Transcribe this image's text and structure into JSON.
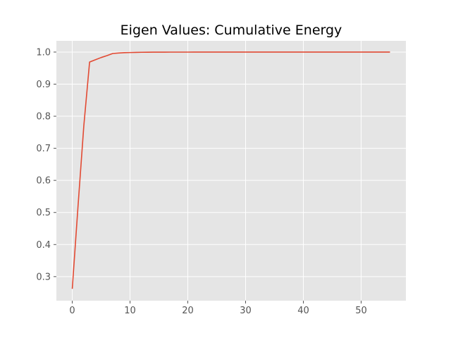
{
  "chart_data": {
    "type": "line",
    "title": "Eigen Values: Cumulative Energy",
    "xlabel": "",
    "ylabel": "",
    "xlim": [
      -2.75,
      57.75
    ],
    "ylim": [
      0.225,
      1.035
    ],
    "grid": true,
    "x_ticks": [
      0,
      10,
      20,
      30,
      40,
      50
    ],
    "y_ticks": [
      0.3,
      0.4,
      0.5,
      0.6,
      0.7,
      0.8,
      0.9,
      1.0
    ],
    "x_tick_labels": [
      "0",
      "10",
      "20",
      "30",
      "40",
      "50"
    ],
    "y_tick_labels": [
      "0.3",
      "0.4",
      "0.5",
      "0.6",
      "0.7",
      "0.8",
      "0.9",
      "1.0"
    ],
    "series": [
      {
        "color": "#E24A33",
        "x": [
          0,
          1,
          2,
          3,
          4,
          5,
          6,
          7,
          8,
          9,
          10,
          11,
          12,
          13,
          14,
          15,
          16,
          17,
          18,
          19,
          20,
          21,
          22,
          23,
          24,
          25,
          26,
          27,
          28,
          29,
          30,
          31,
          32,
          33,
          34,
          35,
          36,
          37,
          38,
          39,
          40,
          41,
          42,
          43,
          44,
          45,
          46,
          47,
          48,
          49,
          50,
          51,
          52,
          53,
          54,
          55
        ],
        "y": [
          0.262,
          0.52,
          0.77,
          0.969,
          0.976,
          0.983,
          0.989,
          0.9955,
          0.997,
          0.998,
          0.9985,
          0.999,
          0.9993,
          0.9995,
          0.9997,
          0.9998,
          0.9998,
          0.9999,
          0.9999,
          0.9999,
          0.9999,
          1.0,
          1.0,
          1.0,
          1.0,
          1.0,
          1.0,
          1.0,
          1.0,
          1.0,
          1.0,
          1.0,
          1.0,
          1.0,
          1.0,
          1.0,
          1.0,
          1.0,
          1.0,
          1.0,
          1.0,
          1.0,
          1.0,
          1.0,
          1.0,
          1.0,
          1.0,
          1.0,
          1.0,
          1.0,
          1.0,
          1.0,
          1.0,
          1.0,
          1.0,
          1.0
        ]
      }
    ],
    "colors": {
      "plot_background": "#E5E5E5",
      "grid": "#FFFFFF",
      "tick_label": "#555555",
      "tick_mark": "#555555"
    }
  }
}
